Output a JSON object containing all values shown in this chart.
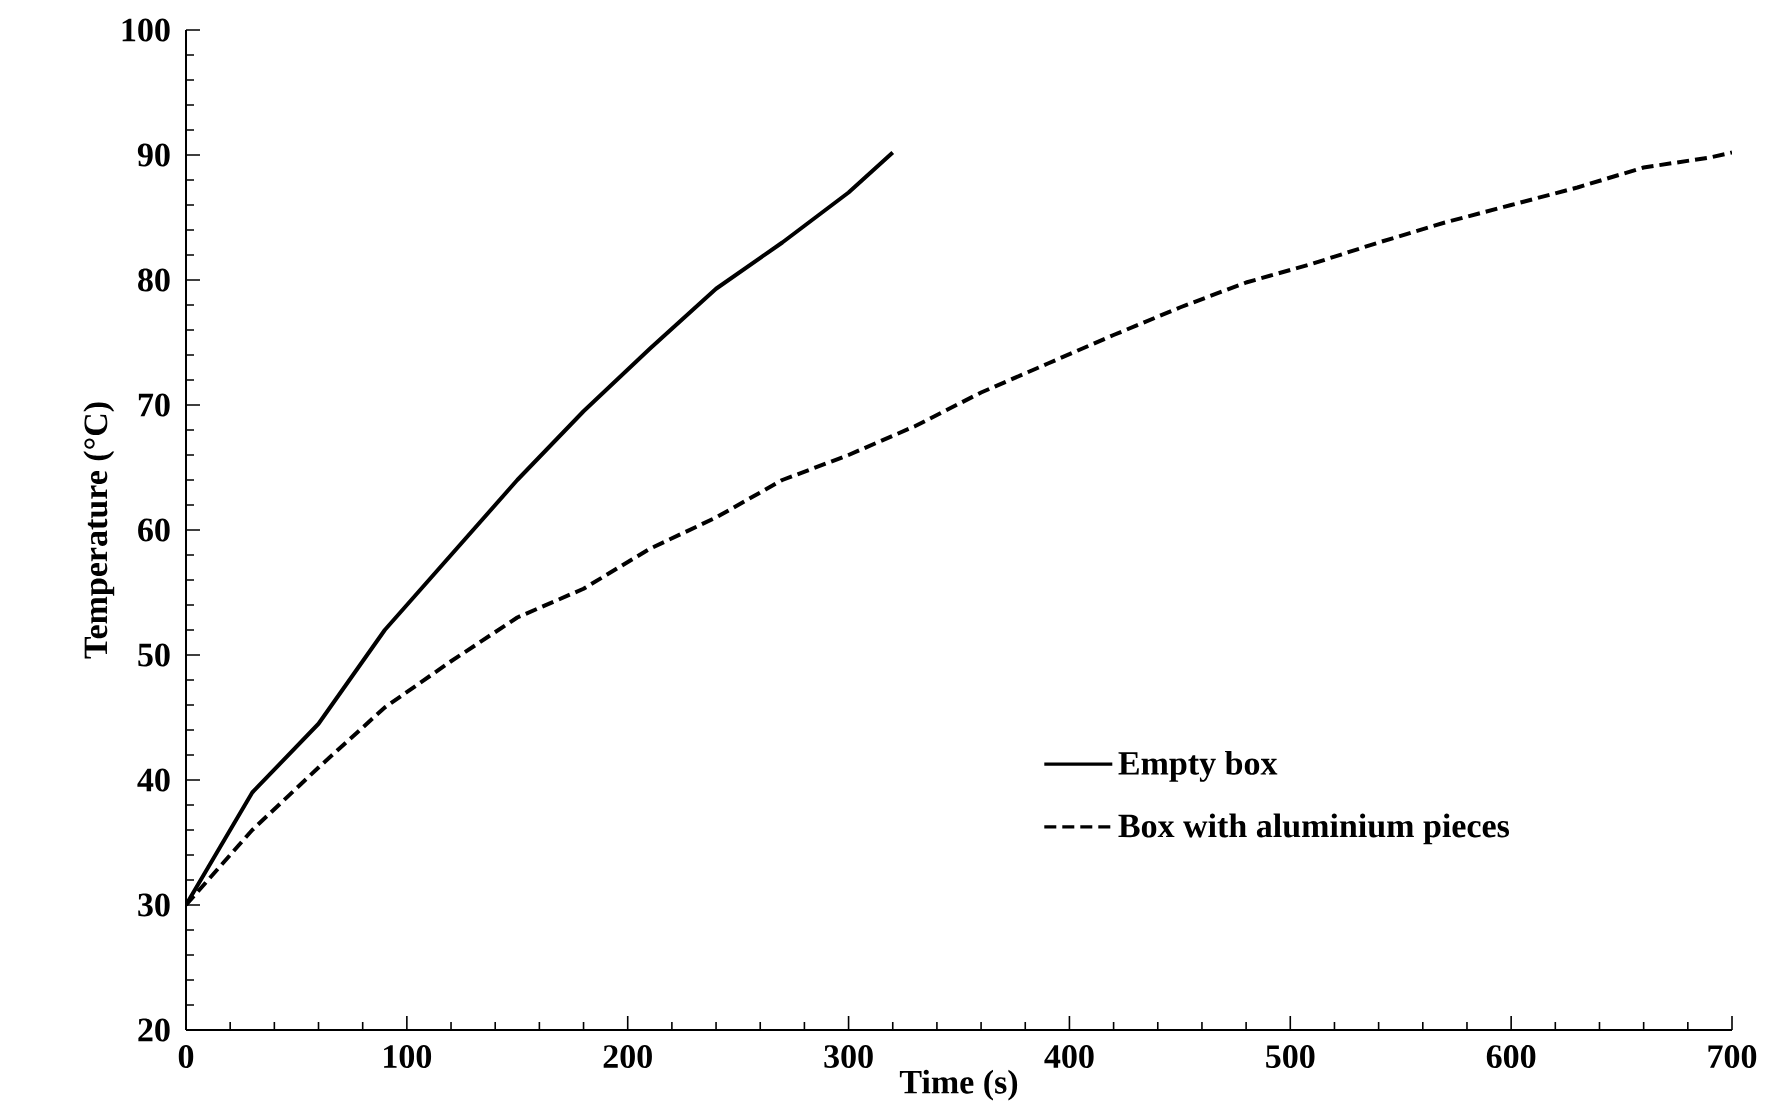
{
  "chart_data": {
    "type": "line",
    "xlabel": "Time (s)",
    "ylabel": "Temperature (°C)",
    "xlim": [
      0,
      700
    ],
    "xticks": [
      0,
      100,
      200,
      300,
      400,
      500,
      600,
      700
    ],
    "ylim": [
      20,
      100
    ],
    "yticks": [
      20,
      30,
      40,
      50,
      60,
      70,
      80,
      90,
      100
    ],
    "grid": false,
    "legend": "bottom right",
    "marker": "none",
    "series": [
      {
        "name": "Empty box",
        "color": "#000000",
        "line_style": "solid",
        "x": [
          0,
          30,
          60,
          90,
          120,
          150,
          180,
          210,
          240,
          270,
          300,
          320
        ],
        "values": [
          30,
          39,
          44.5,
          52,
          58,
          64,
          69.5,
          74.5,
          79.3,
          83,
          87,
          90.2
        ]
      },
      {
        "name": "Box with aluminium pieces",
        "color": "#000000",
        "line_style": "dashed",
        "x": [
          0,
          30,
          60,
          90,
          120,
          150,
          180,
          210,
          240,
          270,
          300,
          330,
          360,
          390,
          420,
          450,
          480,
          510,
          540,
          570,
          600,
          630,
          660,
          690,
          700
        ],
        "values": [
          30,
          36,
          41,
          45.8,
          49.5,
          53,
          55.3,
          58.5,
          61,
          64,
          66,
          68.3,
          71,
          73.3,
          75.6,
          77.8,
          79.8,
          81.3,
          83,
          84.6,
          86,
          87.4,
          89,
          89.8,
          90.2
        ]
      }
    ]
  }
}
